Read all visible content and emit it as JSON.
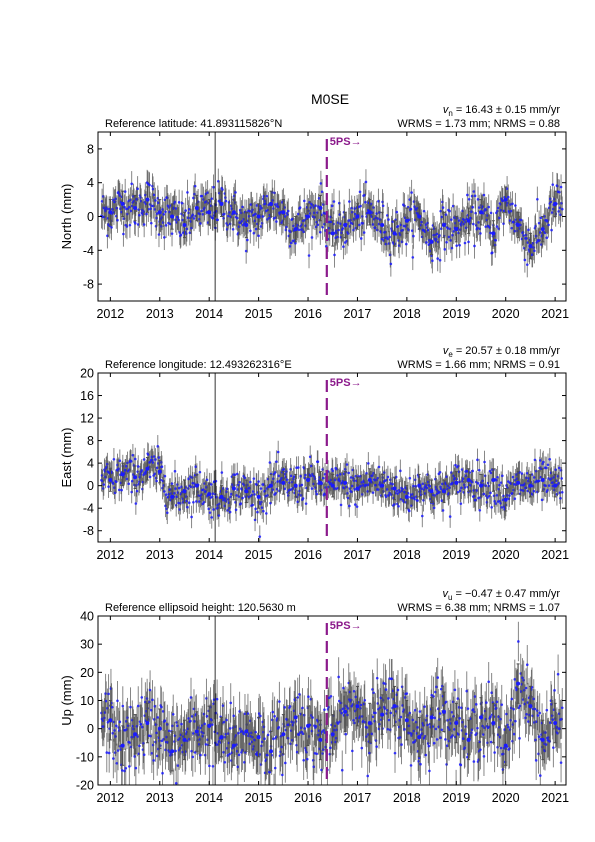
{
  "title": "M0SE",
  "colors": {
    "points": "#1a1aff",
    "errorbars": "#4d4d4d",
    "event_line": "#8b1a8b",
    "marker_line": "#000000"
  },
  "event_label": "5PS→",
  "chart_data": [
    {
      "type": "scatter",
      "ylabel": "North (mm)",
      "ylim": [
        -10,
        10
      ],
      "yticks": [
        -8,
        -4,
        0,
        4,
        8
      ],
      "xlim": [
        2011.75,
        2021.22
      ],
      "xticks": [
        2012,
        2013,
        2014,
        2015,
        2016,
        2017,
        2018,
        2019,
        2020,
        2021
      ],
      "reference": "Reference latitude: 41.893115826°N",
      "rate_symbol": "v",
      "rate_subscript": "n",
      "rate": " = 16.43 ± 0.15 mm/yr",
      "stats": "WRMS = 1.73 mm; NRMS = 0.88",
      "event_x": 2016.38,
      "marker_x": 2014.12,
      "series": {
        "x": [
          2012.0,
          2012.25,
          2012.5,
          2012.75,
          2013.0,
          2013.25,
          2013.5,
          2013.75,
          2014.0,
          2014.25,
          2014.5,
          2014.75,
          2015.0,
          2015.25,
          2015.5,
          2015.75,
          2016.0,
          2016.25,
          2016.5,
          2016.75,
          2017.0,
          2017.25,
          2017.5,
          2017.75,
          2018.0,
          2018.25,
          2018.5,
          2018.75,
          2019.0,
          2019.25,
          2019.5,
          2019.75,
          2020.0,
          2020.25,
          2020.5,
          2020.75,
          2021.0
        ],
        "y": [
          0.5,
          1.5,
          1.0,
          2.0,
          0.5,
          0.0,
          -1.0,
          1.0,
          0.5,
          1.5,
          0.5,
          -1.0,
          0.0,
          1.5,
          0.5,
          -1.5,
          0.0,
          1.0,
          -2.0,
          -1.0,
          0.0,
          0.5,
          -1.0,
          -2.0,
          -0.5,
          0.0,
          -3.0,
          -1.0,
          -1.5,
          -0.5,
          0.5,
          -2.0,
          2.0,
          -1.0,
          -3.5,
          -1.5,
          1.5
        ],
        "error": [
          1.5,
          1.5,
          1.5,
          1.5,
          1.5,
          1.5,
          1.5,
          1.5,
          1.5,
          1.5,
          1.5,
          1.5,
          1.5,
          1.5,
          1.5,
          1.5,
          1.5,
          1.5,
          1.5,
          1.5,
          1.5,
          1.5,
          1.5,
          1.5,
          1.5,
          1.5,
          1.5,
          1.5,
          1.5,
          1.5,
          1.5,
          1.5,
          1.5,
          1.5,
          1.5,
          1.5,
          1.5
        ]
      }
    },
    {
      "type": "scatter",
      "ylabel": "East (mm)",
      "ylim": [
        -10,
        20
      ],
      "yticks": [
        -8,
        -4,
        0,
        4,
        8,
        12,
        16,
        20
      ],
      "xlim": [
        2011.75,
        2021.22
      ],
      "xticks": [
        2012,
        2013,
        2014,
        2015,
        2016,
        2017,
        2018,
        2019,
        2020,
        2021
      ],
      "reference": "Reference longitude: 12.493262316°E",
      "rate_symbol": "v",
      "rate_subscript": "e",
      "rate": " = 20.57 ± 0.18 mm/yr",
      "stats": "WRMS = 1.66 mm; NRMS = 0.91",
      "event_x": 2016.38,
      "marker_x": 2014.12,
      "series": {
        "x": [
          2012.0,
          2012.25,
          2012.5,
          2012.75,
          2013.0,
          2013.25,
          2013.5,
          2013.75,
          2014.0,
          2014.25,
          2014.5,
          2014.75,
          2015.0,
          2015.25,
          2015.5,
          2015.75,
          2016.0,
          2016.25,
          2016.5,
          2016.75,
          2017.0,
          2017.25,
          2017.5,
          2017.75,
          2018.0,
          2018.25,
          2018.5,
          2018.75,
          2019.0,
          2019.25,
          2019.5,
          2019.75,
          2020.0,
          2020.25,
          2020.5,
          2020.75,
          2021.0
        ],
        "y": [
          1.0,
          2.0,
          1.5,
          3.0,
          2.5,
          -2.0,
          -1.0,
          0.0,
          -1.5,
          -2.0,
          -0.5,
          -1.0,
          -2.0,
          0.0,
          0.5,
          0.0,
          1.0,
          0.5,
          0.0,
          0.5,
          -0.5,
          1.0,
          0.0,
          -0.5,
          -2.0,
          0.0,
          -1.0,
          -1.0,
          0.5,
          1.0,
          0.0,
          1.0,
          -2.5,
          0.5,
          0.0,
          1.0,
          0.0
        ],
        "error": [
          2.0,
          2.0,
          2.0,
          2.0,
          2.0,
          2.0,
          2.0,
          2.0,
          2.0,
          2.0,
          2.0,
          2.0,
          2.0,
          2.0,
          2.0,
          2.0,
          2.0,
          2.0,
          2.0,
          2.0,
          2.0,
          2.0,
          2.0,
          2.0,
          2.0,
          2.0,
          2.0,
          2.0,
          2.0,
          2.0,
          2.0,
          2.0,
          2.0,
          2.0,
          2.0,
          2.0,
          2.0
        ]
      }
    },
    {
      "type": "scatter",
      "ylabel": "Up (mm)",
      "ylim": [
        -20,
        40
      ],
      "yticks": [
        -20,
        -10,
        0,
        10,
        20,
        30,
        40
      ],
      "xlim": [
        2011.75,
        2021.22
      ],
      "xticks": [
        2012,
        2013,
        2014,
        2015,
        2016,
        2017,
        2018,
        2019,
        2020,
        2021
      ],
      "reference": "Reference ellipsoid height: 120.5630 m",
      "rate_symbol": "v",
      "rate_subscript": "u",
      "rate": " = −0.47 ± 0.47 mm/yr",
      "stats": "WRMS = 6.38 mm; NRMS = 1.07",
      "event_x": 2016.38,
      "marker_x": 2014.12,
      "series": {
        "x": [
          2012.0,
          2012.25,
          2012.5,
          2012.75,
          2013.0,
          2013.25,
          2013.5,
          2013.75,
          2014.0,
          2014.25,
          2014.5,
          2014.75,
          2015.0,
          2015.25,
          2015.5,
          2015.75,
          2016.0,
          2016.25,
          2016.5,
          2016.75,
          2017.0,
          2017.25,
          2017.5,
          2017.75,
          2018.0,
          2018.25,
          2018.5,
          2018.75,
          2019.0,
          2019.25,
          2019.5,
          2019.75,
          2020.0,
          2020.25,
          2020.5,
          2020.75,
          2021.0
        ],
        "y": [
          3.0,
          -6.0,
          -2.0,
          2.0,
          0.0,
          -8.0,
          -4.0,
          -1.0,
          1.0,
          -3.0,
          -6.0,
          -1.0,
          -3.0,
          -8.0,
          -2.0,
          4.0,
          1.0,
          -4.0,
          -2.0,
          6.0,
          8.0,
          2.0,
          5.0,
          8.0,
          3.0,
          -3.0,
          4.0,
          6.0,
          2.0,
          -4.0,
          4.0,
          2.0,
          -6.0,
          16.0,
          8.0,
          -4.0,
          2.0
        ],
        "error": [
          7.0,
          7.0,
          7.0,
          7.0,
          7.0,
          7.0,
          7.0,
          7.0,
          7.0,
          7.0,
          7.0,
          7.0,
          7.0,
          7.0,
          7.0,
          7.0,
          7.0,
          7.0,
          7.0,
          7.0,
          7.0,
          7.0,
          7.0,
          7.0,
          7.0,
          7.0,
          7.0,
          7.0,
          7.0,
          7.0,
          7.0,
          7.0,
          7.0,
          7.0,
          7.0,
          7.0,
          7.0
        ]
      }
    }
  ]
}
